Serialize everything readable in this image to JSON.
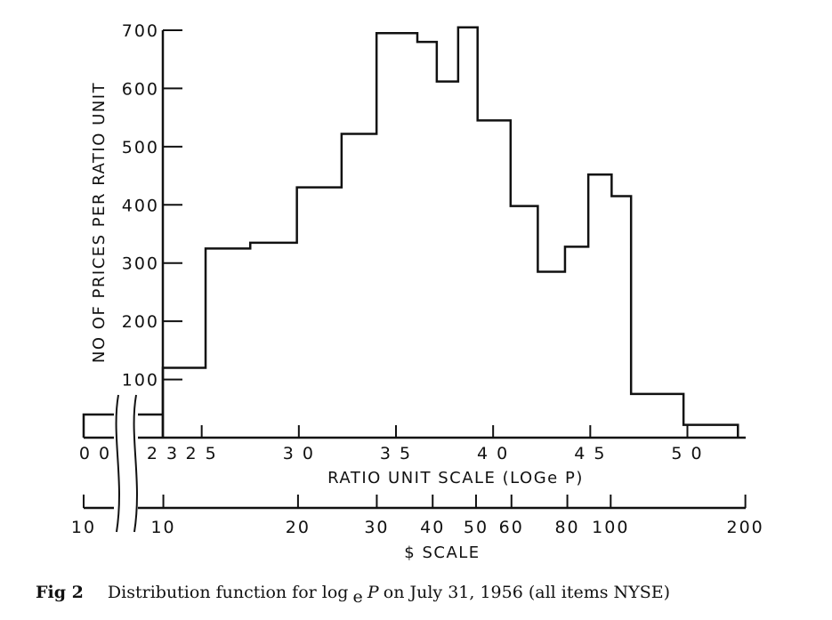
{
  "chart_data": {
    "type": "bar",
    "title": "",
    "ylabel": "NO OF PRICES PER RATIO UNIT",
    "xlabel": "RATIO UNIT SCALE (LOGe P)",
    "ylim": [
      0,
      700
    ],
    "xlim": [
      2.3,
      5.3
    ],
    "y_ticks": [
      100,
      200,
      300,
      400,
      500,
      600,
      700
    ],
    "y_tick_labels": [
      "100",
      "200",
      "300",
      "400",
      "500",
      "600",
      "700"
    ],
    "x_ticks": [
      2.3,
      2.5,
      3.0,
      3.5,
      4.0,
      4.5,
      5.0
    ],
    "x_tick_labels": [
      "2 3",
      "2 5",
      "3 0",
      "3 5",
      "4 0",
      "4 5",
      "5 0"
    ],
    "x_break_tick_label": "0 0",
    "dollar_axis": {
      "label": "$ SCALE",
      "break_tick_label": "10",
      "ticks": [
        10,
        20,
        30,
        40,
        50,
        60,
        80,
        100,
        200
      ],
      "tick_labels": [
        "10",
        "20",
        "30",
        "40",
        "50",
        "60",
        "80",
        "100",
        "200"
      ]
    },
    "bins": [
      {
        "x0": 2.3,
        "x1": 2.52,
        "y": 120
      },
      {
        "x0": 2.52,
        "x1": 2.75,
        "y": 325
      },
      {
        "x0": 2.75,
        "x1": 2.99,
        "y": 335
      },
      {
        "x0": 2.99,
        "x1": 3.22,
        "y": 430
      },
      {
        "x0": 3.22,
        "x1": 3.4,
        "y": 522
      },
      {
        "x0": 3.4,
        "x1": 3.61,
        "y": 695
      },
      {
        "x0": 3.61,
        "x1": 3.71,
        "y": 680
      },
      {
        "x0": 3.71,
        "x1": 3.82,
        "y": 612
      },
      {
        "x0": 3.82,
        "x1": 3.92,
        "y": 705
      },
      {
        "x0": 3.92,
        "x1": 4.09,
        "y": 545
      },
      {
        "x0": 4.09,
        "x1": 4.23,
        "y": 398
      },
      {
        "x0": 4.23,
        "x1": 4.37,
        "y": 285
      },
      {
        "x0": 4.37,
        "x1": 4.49,
        "y": 328
      },
      {
        "x0": 4.49,
        "x1": 4.61,
        "y": 452
      },
      {
        "x0": 4.61,
        "x1": 4.71,
        "y": 415
      },
      {
        "x0": 4.71,
        "x1": 4.98,
        "y": 75
      },
      {
        "x0": 4.98,
        "x1": 5.26,
        "y": 22
      }
    ],
    "pre_break_bar": {
      "y": 30
    },
    "grid": false,
    "legend": "none"
  },
  "caption": {
    "figure_label": "Fig 2",
    "text_before": "Distribution function for log",
    "subscript": "e",
    "italic_var": "P",
    "text_after": " on July 31, 1956 (all items NYSE)"
  }
}
